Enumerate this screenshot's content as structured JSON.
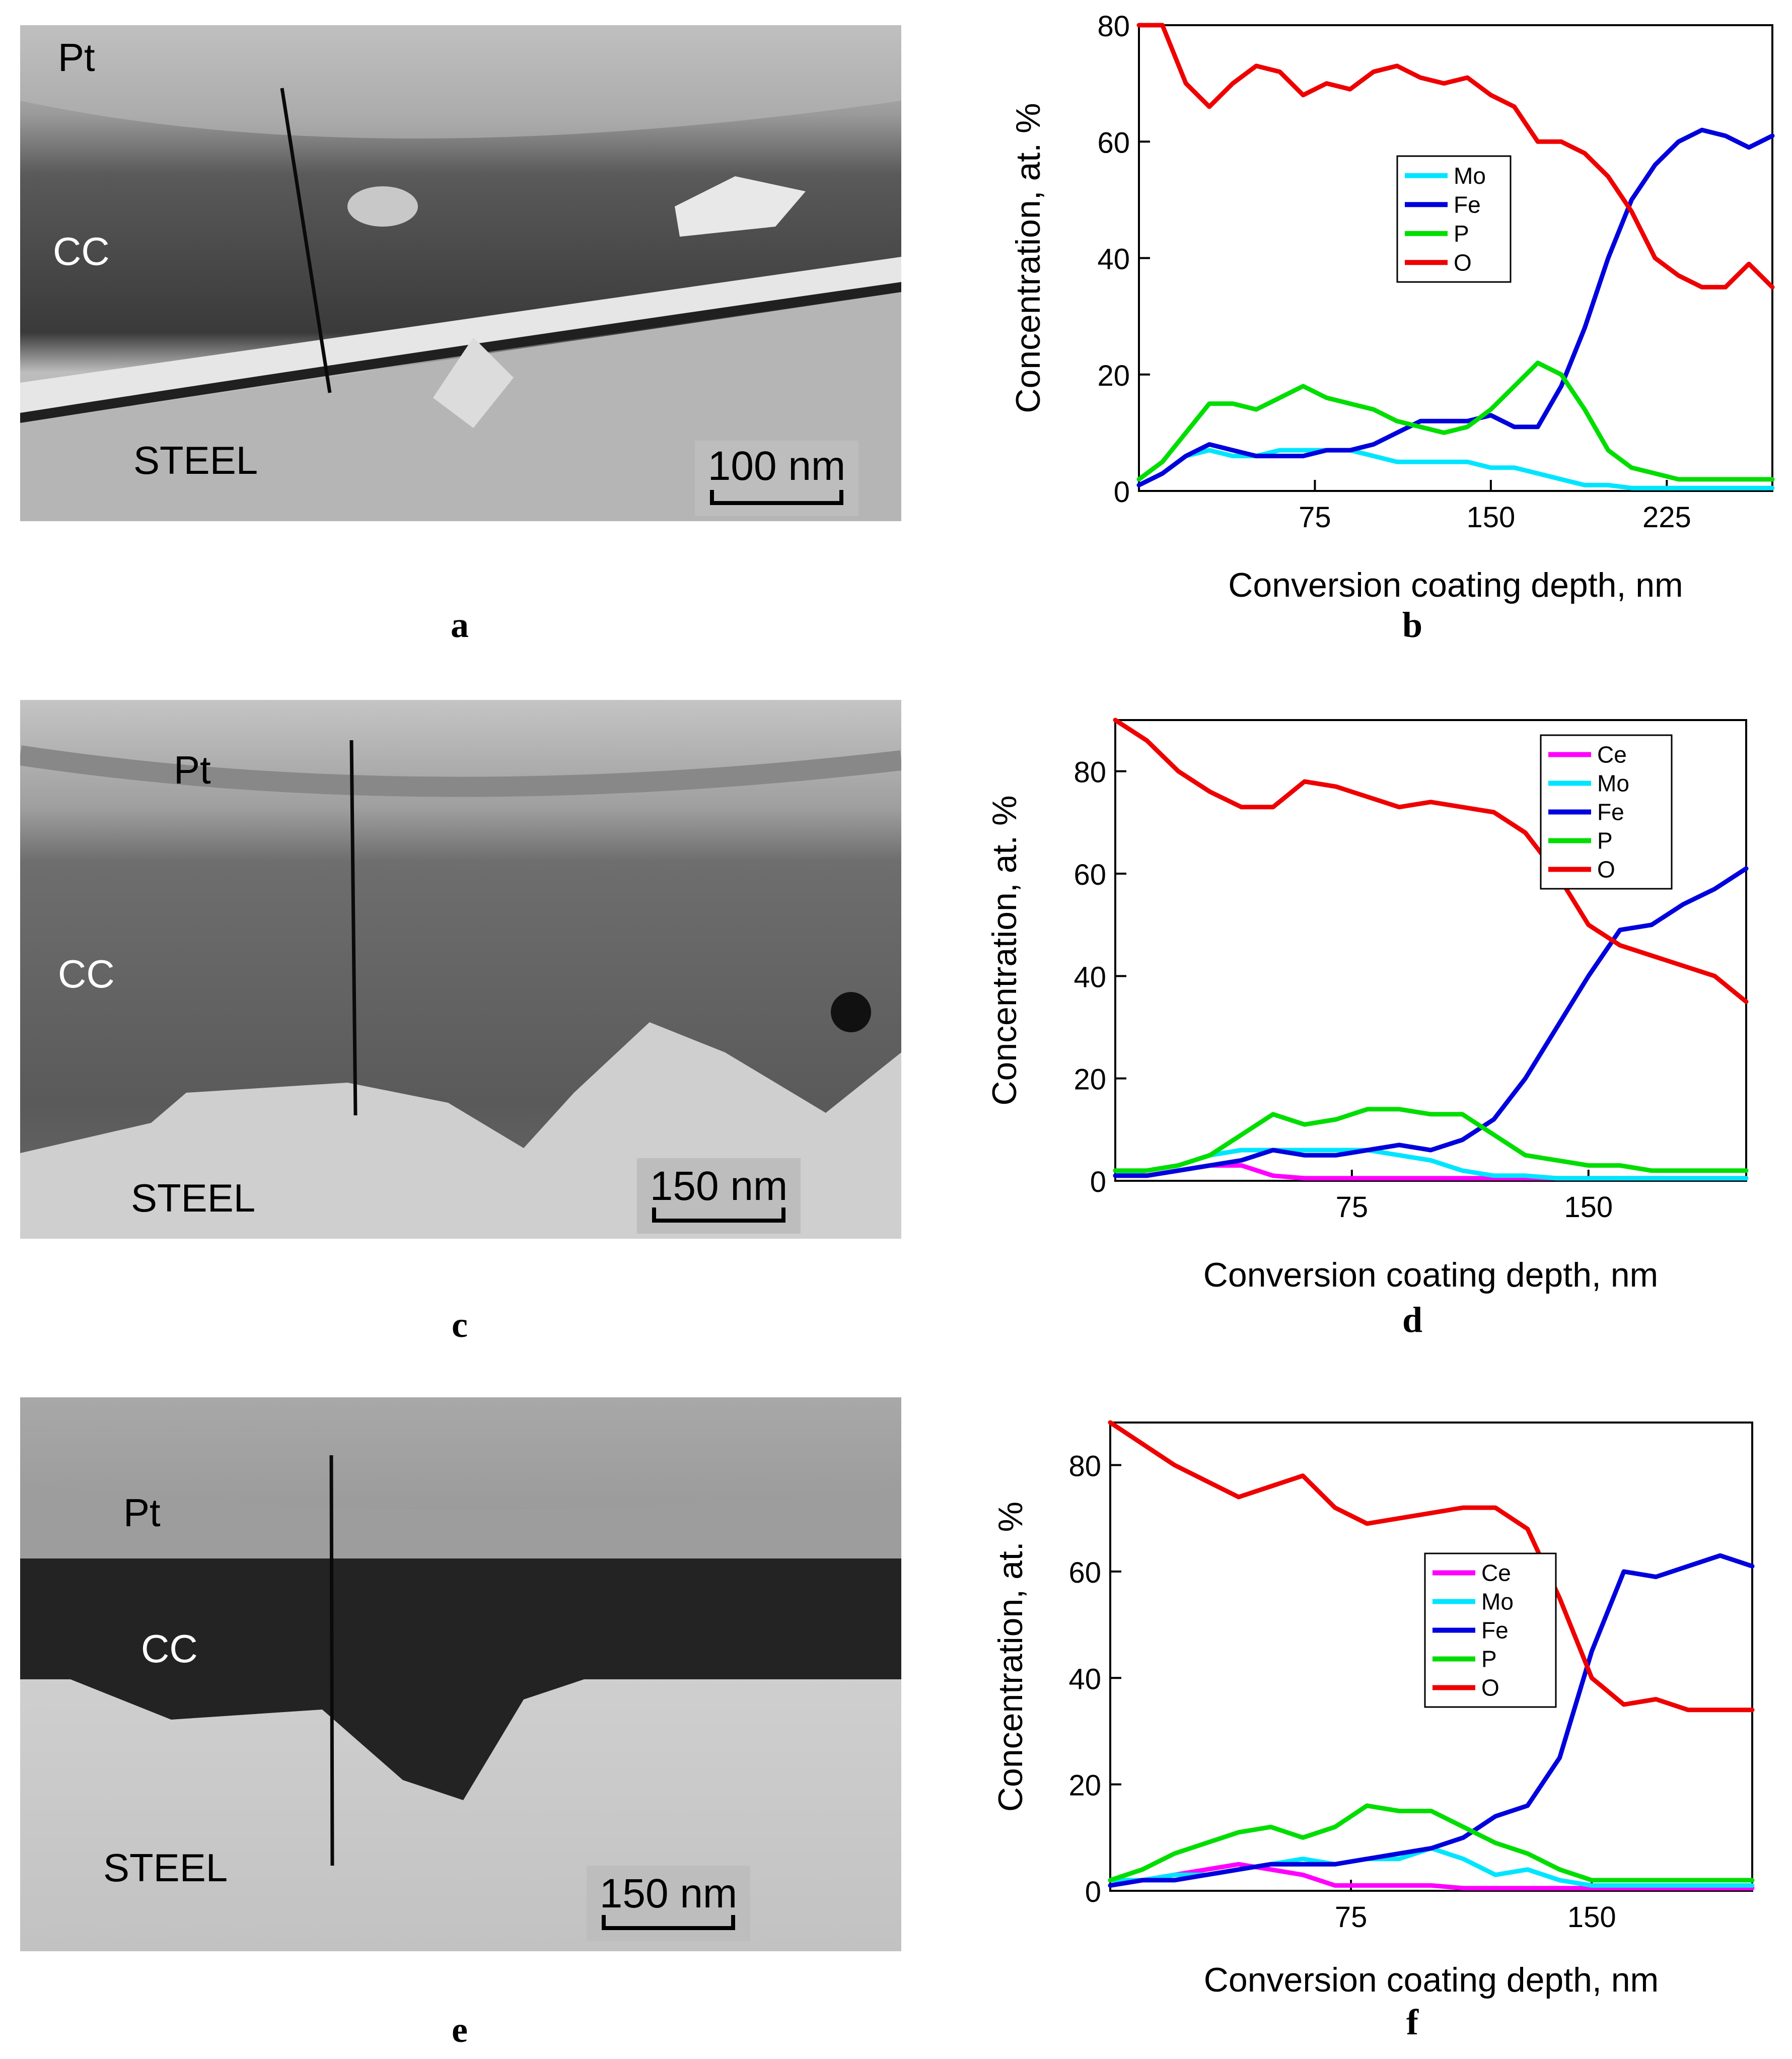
{
  "figure": {
    "panels": [
      {
        "letter": "a",
        "type": "micrograph",
        "labels": {
          "pt": "Pt",
          "cc": "CC",
          "steel": "STEEL"
        },
        "scale": "100 nm"
      },
      {
        "letter": "b",
        "type": "chart"
      },
      {
        "letter": "c",
        "type": "micrograph",
        "labels": {
          "pt": "Pt",
          "cc": "CC",
          "steel": "STEEL"
        },
        "scale": "150 nm"
      },
      {
        "letter": "d",
        "type": "chart"
      },
      {
        "letter": "e",
        "type": "micrograph",
        "labels": {
          "pt": "Pt",
          "cc": "CC",
          "steel": "STEEL"
        },
        "scale": "150 nm"
      },
      {
        "letter": "f",
        "type": "chart"
      }
    ]
  },
  "colors": {
    "Ce": "#ff00ff",
    "Mo": "#00e5ff",
    "Fe": "#0000dd",
    "P": "#00dd00",
    "O": "#ee0000"
  },
  "chart_data": [
    {
      "id": "b",
      "type": "line",
      "xlabel": "Conversion coating depth, nm",
      "ylabel": "Concentration, at. %",
      "xlim": [
        0,
        270
      ],
      "ylim": [
        0,
        80
      ],
      "xticks": [
        75,
        150,
        225
      ],
      "yticks": [
        0,
        20,
        40,
        60,
        80
      ],
      "legend": [
        "Mo",
        "Fe",
        "P",
        "O"
      ],
      "legend_position": "upper-middle",
      "series": [
        {
          "name": "Mo",
          "x": [
            0,
            10,
            20,
            30,
            40,
            50,
            60,
            70,
            80,
            90,
            100,
            110,
            120,
            130,
            140,
            150,
            160,
            170,
            180,
            190,
            200,
            210,
            220,
            230,
            240,
            250,
            260,
            270
          ],
          "y": [
            1,
            3,
            6,
            7,
            6,
            6,
            7,
            7,
            7,
            7,
            6,
            5,
            5,
            5,
            5,
            4,
            4,
            3,
            2,
            1,
            1,
            0.5,
            0.5,
            0.5,
            0.5,
            0.5,
            0.5,
            0.5
          ]
        },
        {
          "name": "Fe",
          "x": [
            0,
            10,
            20,
            30,
            40,
            50,
            60,
            70,
            80,
            90,
            100,
            110,
            120,
            130,
            140,
            150,
            160,
            170,
            180,
            190,
            200,
            210,
            220,
            230,
            240,
            250,
            260,
            270
          ],
          "y": [
            1,
            3,
            6,
            8,
            7,
            6,
            6,
            6,
            7,
            7,
            8,
            10,
            12,
            12,
            12,
            13,
            11,
            11,
            18,
            28,
            40,
            50,
            56,
            60,
            62,
            61,
            59,
            61
          ]
        },
        {
          "name": "P",
          "x": [
            0,
            10,
            20,
            30,
            40,
            50,
            60,
            70,
            80,
            90,
            100,
            110,
            120,
            130,
            140,
            150,
            160,
            170,
            180,
            190,
            200,
            210,
            220,
            230,
            240,
            250,
            260,
            270
          ],
          "y": [
            2,
            5,
            10,
            15,
            15,
            14,
            16,
            18,
            16,
            15,
            14,
            12,
            11,
            10,
            11,
            14,
            18,
            22,
            20,
            14,
            7,
            4,
            3,
            2,
            2,
            2,
            2,
            2
          ]
        },
        {
          "name": "O",
          "x": [
            0,
            10,
            20,
            30,
            40,
            50,
            60,
            70,
            80,
            90,
            100,
            110,
            120,
            130,
            140,
            150,
            160,
            170,
            180,
            190,
            200,
            210,
            220,
            230,
            240,
            250,
            260,
            270
          ],
          "y": [
            82,
            80,
            70,
            66,
            70,
            73,
            72,
            68,
            70,
            69,
            72,
            73,
            71,
            70,
            71,
            68,
            66,
            60,
            60,
            58,
            54,
            48,
            40,
            37,
            35,
            35,
            39,
            35
          ]
        }
      ]
    },
    {
      "id": "d",
      "type": "line",
      "xlabel": "Conversion coating depth, nm",
      "ylabel": "Concentration, at. %",
      "xlim": [
        0,
        200
      ],
      "ylim": [
        0,
        90
      ],
      "xticks": [
        75,
        150
      ],
      "yticks": [
        0,
        20,
        40,
        60,
        80
      ],
      "legend": [
        "Ce",
        "Mo",
        "Fe",
        "P",
        "O"
      ],
      "legend_position": "top-right",
      "series": [
        {
          "name": "Ce",
          "x": [
            0,
            10,
            20,
            30,
            40,
            50,
            60,
            70,
            80,
            90,
            100,
            110,
            120,
            130,
            140,
            150,
            160,
            170,
            180,
            190,
            200
          ],
          "y": [
            1,
            1,
            2,
            3,
            3,
            1,
            0.5,
            0.5,
            0.5,
            0.5,
            0.5,
            0.5,
            0.5,
            0.5,
            0.5,
            0.5,
            0.5,
            0.5,
            0.5,
            0.5,
            0.5
          ]
        },
        {
          "name": "Mo",
          "x": [
            0,
            10,
            20,
            30,
            40,
            50,
            60,
            70,
            80,
            90,
            100,
            110,
            120,
            130,
            140,
            150,
            160,
            170,
            180,
            190,
            200
          ],
          "y": [
            1,
            2,
            3,
            5,
            6,
            6,
            6,
            6,
            6,
            5,
            4,
            2,
            1,
            1,
            0.5,
            0.5,
            0.5,
            0.5,
            0.5,
            0.5,
            0.5
          ]
        },
        {
          "name": "Fe",
          "x": [
            0,
            10,
            20,
            30,
            40,
            50,
            60,
            70,
            80,
            90,
            100,
            110,
            120,
            130,
            140,
            150,
            160,
            170,
            180,
            190,
            200
          ],
          "y": [
            1,
            1,
            2,
            3,
            4,
            6,
            5,
            5,
            6,
            7,
            6,
            8,
            12,
            20,
            30,
            40,
            49,
            50,
            54,
            57,
            61
          ]
        },
        {
          "name": "P",
          "x": [
            0,
            10,
            20,
            30,
            40,
            50,
            60,
            70,
            80,
            90,
            100,
            110,
            120,
            130,
            140,
            150,
            160,
            170,
            180,
            190,
            200
          ],
          "y": [
            2,
            2,
            3,
            5,
            9,
            13,
            11,
            12,
            14,
            14,
            13,
            13,
            9,
            5,
            4,
            3,
            3,
            2,
            2,
            2,
            2
          ]
        },
        {
          "name": "O",
          "x": [
            0,
            10,
            20,
            30,
            40,
            50,
            60,
            70,
            80,
            90,
            100,
            110,
            120,
            130,
            140,
            150,
            160,
            170,
            180,
            190,
            200
          ],
          "y": [
            90,
            86,
            80,
            76,
            73,
            73,
            78,
            77,
            75,
            73,
            74,
            73,
            72,
            68,
            60,
            50,
            46,
            44,
            42,
            40,
            35
          ]
        }
      ]
    },
    {
      "id": "f",
      "type": "line",
      "xlabel": "Conversion coating depth, nm",
      "ylabel": "Concentration, at. %",
      "xlim": [
        0,
        200
      ],
      "ylim": [
        0,
        88
      ],
      "xticks": [
        75,
        150
      ],
      "yticks": [
        0,
        20,
        40,
        60,
        80
      ],
      "legend": [
        "Ce",
        "Mo",
        "Fe",
        "P",
        "O"
      ],
      "legend_position": "middle-right",
      "series": [
        {
          "name": "Ce",
          "x": [
            0,
            10,
            20,
            30,
            40,
            50,
            60,
            70,
            80,
            90,
            100,
            110,
            120,
            130,
            140,
            150,
            160,
            170,
            180,
            190,
            200
          ],
          "y": [
            1,
            2,
            3,
            4,
            5,
            4,
            3,
            1,
            1,
            1,
            1,
            0.5,
            0.5,
            0.5,
            0.5,
            0.5,
            0.5,
            0.5,
            0.5,
            0.5,
            0.5
          ]
        },
        {
          "name": "Mo",
          "x": [
            0,
            10,
            20,
            30,
            40,
            50,
            60,
            70,
            80,
            90,
            100,
            110,
            120,
            130,
            140,
            150,
            160,
            170,
            180,
            190,
            200
          ],
          "y": [
            2,
            2,
            3,
            3,
            4,
            5,
            6,
            5,
            6,
            6,
            8,
            6,
            3,
            4,
            2,
            1,
            1,
            1,
            1,
            1,
            1
          ]
        },
        {
          "name": "Fe",
          "x": [
            0,
            10,
            20,
            30,
            40,
            50,
            60,
            70,
            80,
            90,
            100,
            110,
            120,
            130,
            140,
            150,
            160,
            170,
            180,
            190,
            200
          ],
          "y": [
            1,
            2,
            2,
            3,
            4,
            5,
            5,
            5,
            6,
            7,
            8,
            10,
            14,
            16,
            25,
            45,
            60,
            59,
            61,
            63,
            61
          ]
        },
        {
          "name": "P",
          "x": [
            0,
            10,
            20,
            30,
            40,
            50,
            60,
            70,
            80,
            90,
            100,
            110,
            120,
            130,
            140,
            150,
            160,
            170,
            180,
            190,
            200
          ],
          "y": [
            2,
            4,
            7,
            9,
            11,
            12,
            10,
            12,
            16,
            15,
            15,
            12,
            9,
            7,
            4,
            2,
            2,
            2,
            2,
            2,
            2
          ]
        },
        {
          "name": "O",
          "x": [
            0,
            10,
            20,
            30,
            40,
            50,
            60,
            70,
            80,
            90,
            100,
            110,
            120,
            130,
            140,
            150,
            160,
            170,
            180,
            190,
            200
          ],
          "y": [
            88,
            84,
            80,
            77,
            74,
            76,
            78,
            72,
            69,
            70,
            71,
            72,
            72,
            68,
            55,
            40,
            35,
            36,
            34,
            34,
            34
          ]
        }
      ]
    }
  ]
}
